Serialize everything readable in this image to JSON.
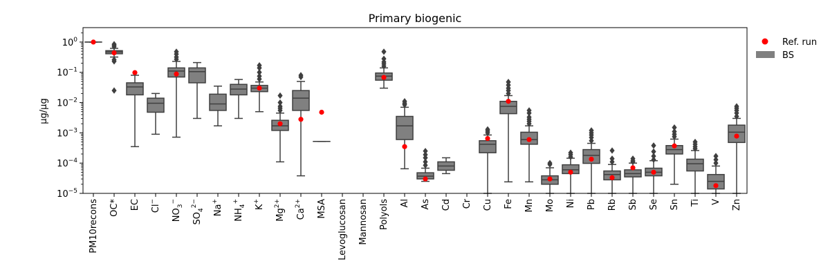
{
  "chart_data": {
    "type": "box",
    "title": "Primary biogenic",
    "ylabel": "µg/µg",
    "xlabel": "",
    "yscale": "log",
    "ylim": [
      1e-05,
      3
    ],
    "yticks": [
      {
        "value": 1e-05,
        "base": "10",
        "exp": "−5"
      },
      {
        "value": 0.0001,
        "base": "10",
        "exp": "−4"
      },
      {
        "value": 0.001,
        "base": "10",
        "exp": "−3"
      },
      {
        "value": 0.01,
        "base": "10",
        "exp": "−2"
      },
      {
        "value": 0.1,
        "base": "10",
        "exp": "−1"
      },
      {
        "value": 1,
        "base": "10",
        "exp": "0"
      }
    ],
    "legend": {
      "position": "outside-top-right",
      "entries": [
        {
          "label": "Ref. run",
          "kind": "marker",
          "color": "#ff0000"
        },
        {
          "label": "BS",
          "kind": "patch",
          "color": "#808080"
        }
      ]
    },
    "colors": {
      "box": "#808080",
      "edge": "#3f3f3f",
      "ref": "#ff0000"
    },
    "categories": [
      {
        "label": "PM10recons"
      },
      {
        "label": "OC*"
      },
      {
        "label": "EC"
      },
      {
        "label": "Cl",
        "sup": "−"
      },
      {
        "label": "NO",
        "sub": "3",
        "sup": "−"
      },
      {
        "label": "SO",
        "sub": "4",
        "sup": "2−"
      },
      {
        "label": "Na",
        "sup": "+"
      },
      {
        "label": "NH",
        "sub": "4",
        "sup": "+"
      },
      {
        "label": "K",
        "sup": "+"
      },
      {
        "label": "Mg",
        "sup": "2+"
      },
      {
        "label": "Ca",
        "sup": "2+"
      },
      {
        "label": "MSA"
      },
      {
        "label": "Levoglucosan"
      },
      {
        "label": "Mannosan"
      },
      {
        "label": "Polyols"
      },
      {
        "label": "Al"
      },
      {
        "label": "As"
      },
      {
        "label": "Cd"
      },
      {
        "label": "Cr"
      },
      {
        "label": "Cu"
      },
      {
        "label": "Fe"
      },
      {
        "label": "Mn"
      },
      {
        "label": "Mo"
      },
      {
        "label": "Ni"
      },
      {
        "label": "Pb"
      },
      {
        "label": "Rb"
      },
      {
        "label": "Sb"
      },
      {
        "label": "Se"
      },
      {
        "label": "Sn"
      },
      {
        "label": "Ti"
      },
      {
        "label": "V"
      },
      {
        "label": "Zn"
      }
    ],
    "series": [
      {
        "name": "BS",
        "boxes": [
          {
            "whislo": 1.0,
            "q1": 1.0,
            "med": 1.0,
            "q3": 1.0,
            "whishi": 1.0,
            "fliers": []
          },
          {
            "whislo": 0.32,
            "q1": 0.41,
            "med": 0.47,
            "q3": 0.52,
            "whishi": 0.62,
            "fliers": [
              0.025,
              0.23,
              0.26,
              0.7,
              0.78,
              0.85
            ]
          },
          {
            "whislo": 0.00035,
            "q1": 0.018,
            "med": 0.033,
            "q3": 0.045,
            "whishi": 0.08,
            "fliers": []
          },
          {
            "whislo": 0.0009,
            "q1": 0.0048,
            "med": 0.0095,
            "q3": 0.014,
            "whishi": 0.02,
            "fliers": []
          },
          {
            "whislo": 0.00072,
            "q1": 0.07,
            "med": 0.11,
            "q3": 0.14,
            "whishi": 0.23,
            "fliers": [
              0.27,
              0.32,
              0.4,
              0.48
            ]
          },
          {
            "whislo": 0.003,
            "q1": 0.045,
            "med": 0.105,
            "q3": 0.14,
            "whishi": 0.21,
            "fliers": []
          },
          {
            "whislo": 0.0017,
            "q1": 0.0055,
            "med": 0.009,
            "q3": 0.019,
            "whishi": 0.035,
            "fliers": []
          },
          {
            "whislo": 0.003,
            "q1": 0.018,
            "med": 0.028,
            "q3": 0.04,
            "whishi": 0.058,
            "fliers": []
          },
          {
            "whislo": 0.005,
            "q1": 0.023,
            "med": 0.03,
            "q3": 0.037,
            "whishi": 0.048,
            "fliers": [
              0.06,
              0.075,
              0.1,
              0.14,
              0.17
            ]
          },
          {
            "whislo": 0.00011,
            "q1": 0.0012,
            "med": 0.0017,
            "q3": 0.0026,
            "whishi": 0.0045,
            "fliers": [
              0.0055,
              0.0065,
              0.0075,
              0.01,
              0.017
            ]
          },
          {
            "whislo": 3.8e-05,
            "q1": 0.0055,
            "med": 0.014,
            "q3": 0.025,
            "whishi": 0.05,
            "fliers": [
              0.07,
              0.08
            ]
          },
          {
            "whislo": 0.00052,
            "q1": 0.00052,
            "med": 0.00052,
            "q3": 0.00052,
            "whishi": 0.00052,
            "fliers": []
          },
          null,
          null,
          {
            "whislo": 0.03,
            "q1": 0.055,
            "med": 0.075,
            "q3": 0.095,
            "whishi": 0.14,
            "fliers": [
              0.16,
              0.19,
              0.22,
              0.28,
              0.48
            ]
          },
          {
            "whislo": 6.5e-05,
            "q1": 0.0006,
            "med": 0.0017,
            "q3": 0.0035,
            "whishi": 0.007,
            "fliers": [
              0.0085,
              0.0095,
              0.011
            ]
          },
          {
            "whislo": 2.5e-05,
            "q1": 3e-05,
            "med": 3.7e-05,
            "q3": 4.8e-05,
            "whishi": 6.8e-05,
            "fliers": [
              8.5e-05,
              0.00011,
              0.00015,
              0.00019,
              0.00025
            ]
          },
          {
            "whislo": 4.5e-05,
            "q1": 5.8e-05,
            "med": 8e-05,
            "q3": 0.00011,
            "whishi": 0.00015,
            "fliers": []
          },
          null,
          {
            "whislo": 1e-05,
            "q1": 0.00022,
            "med": 0.00042,
            "q3": 0.00055,
            "whishi": 0.00085,
            "fliers": [
              0.001,
              0.00115,
              0.0013
            ]
          },
          {
            "whislo": 2.4e-05,
            "q1": 0.0043,
            "med": 0.0075,
            "q3": 0.011,
            "whishi": 0.017,
            "fliers": [
              0.02,
              0.025,
              0.03,
              0.038,
              0.048
            ]
          },
          {
            "whislo": 2.4e-05,
            "q1": 0.00042,
            "med": 0.0006,
            "q3": 0.00105,
            "whishi": 0.0017,
            "fliers": [
              0.002,
              0.0024,
              0.0028,
              0.0033,
              0.0045,
              0.0055
            ]
          },
          {
            "whislo": 1e-05,
            "q1": 2e-05,
            "med": 2.8e-05,
            "q3": 3.8e-05,
            "whishi": 7e-05,
            "fliers": [
              9e-05,
              0.0001
            ]
          },
          {
            "whislo": 1e-05,
            "q1": 4.5e-05,
            "med": 6e-05,
            "q3": 8.8e-05,
            "whishi": 0.000145,
            "fliers": [
              0.00016,
              0.00019,
              0.00022
            ]
          },
          {
            "whislo": 1e-05,
            "q1": 9.8e-05,
            "med": 0.00018,
            "q3": 0.00028,
            "whishi": 0.00045,
            "fliers": [
              0.00055,
              0.0007,
              0.00085,
              0.001,
              0.0012
            ]
          },
          {
            "whislo": 1e-05,
            "q1": 2.8e-05,
            "med": 4.2e-05,
            "q3": 5.5e-05,
            "whishi": 9e-05,
            "fliers": [
              0.00011,
              0.00014,
              0.00026
            ]
          },
          {
            "whislo": 1e-05,
            "q1": 3.5e-05,
            "med": 4.5e-05,
            "q3": 6e-05,
            "whishi": 0.0001,
            "fliers": [
              0.00011,
              0.00012,
              0.00014
            ]
          },
          {
            "whislo": 1e-05,
            "q1": 3.8e-05,
            "med": 5e-05,
            "q3": 6.8e-05,
            "whishi": 0.00012,
            "fliers": [
              0.00013,
              0.00017,
              0.00024,
              0.00038
            ]
          },
          {
            "whislo": 2e-05,
            "q1": 0.0002,
            "med": 0.00028,
            "q3": 0.00038,
            "whishi": 0.00062,
            "fliers": [
              0.00075,
              0.0009,
              0.0011,
              0.0015
            ]
          },
          {
            "whislo": 1e-05,
            "q1": 5.5e-05,
            "med": 9.5e-05,
            "q3": 0.000135,
            "whishi": 0.00026,
            "fliers": [
              0.0003,
              0.00035,
              0.00042,
              0.0005
            ]
          },
          {
            "whislo": 1e-05,
            "q1": 1.4e-05,
            "med": 2.5e-05,
            "q3": 4.2e-05,
            "whishi": 8e-05,
            "fliers": [
              0.0001,
              0.00013,
              0.00017
            ]
          },
          {
            "whislo": 1e-05,
            "q1": 0.00048,
            "med": 0.00105,
            "q3": 0.0018,
            "whishi": 0.003,
            "fliers": [
              0.0035,
              0.0045,
              0.0055,
              0.0065,
              0.0075
            ]
          }
        ]
      },
      {
        "name": "Ref. run",
        "values": [
          1.0,
          0.44,
          0.098,
          null,
          0.088,
          null,
          null,
          null,
          0.03,
          0.002,
          0.0028,
          0.0048,
          null,
          null,
          0.068,
          0.00035,
          3e-05,
          null,
          null,
          0.00065,
          0.011,
          0.0006,
          3e-05,
          5e-05,
          0.000135,
          3.3e-05,
          7e-05,
          5e-05,
          0.00037,
          null,
          1.8e-05,
          0.00078
        ]
      }
    ]
  }
}
